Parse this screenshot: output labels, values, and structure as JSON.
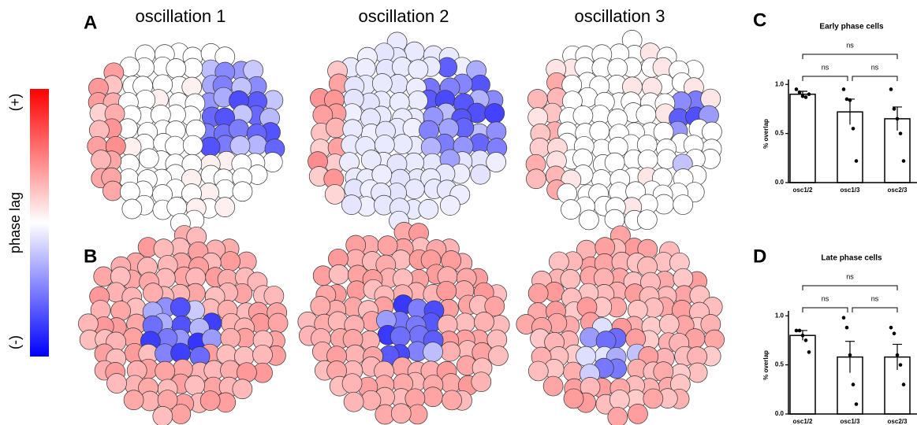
{
  "figure": {
    "panel_labels": [
      "A",
      "B",
      "C",
      "D"
    ],
    "column_titles": [
      "oscillation 1",
      "oscillation 2",
      "oscillation 3"
    ],
    "colorbar": {
      "label": "phase lag",
      "top": "(+)",
      "bottom": "(-)"
    }
  },
  "chart_data": [
    {
      "type": "bar",
      "title": "Early phase cells",
      "y_label": "% overlap",
      "categories": [
        "osc1/2",
        "osc1/3",
        "osc2/3"
      ],
      "values": [
        0.9,
        0.72,
        0.65
      ],
      "errors": [
        0.03,
        0.13,
        0.12
      ],
      "points": [
        [
          0.95,
          0.92,
          0.88,
          0.87,
          0.9
        ],
        [
          0.95,
          0.85,
          0.84,
          0.55,
          0.22
        ],
        [
          0.95,
          0.75,
          0.65,
          0.5,
          0.22
        ]
      ],
      "color": "#ffffff",
      "ylim": [
        0,
        1.05
      ],
      "yticks": [
        {
          "value": 0,
          "label": "0.0"
        },
        {
          "value": 0.5,
          "label": "0.5"
        },
        {
          "value": 1,
          "label": "1.0"
        }
      ],
      "annotations": [
        "ns",
        "ns",
        "ns"
      ]
    },
    {
      "type": "bar",
      "title": "Late phase cells",
      "y_label": "% overlap",
      "categories": [
        "osc1/2",
        "osc1/3",
        "osc2/3"
      ],
      "values": [
        0.8,
        0.58,
        0.58
      ],
      "errors": [
        0.05,
        0.16,
        0.13
      ],
      "points": [
        [
          0.85,
          0.85,
          0.8,
          0.75,
          0.63
        ],
        [
          0.98,
          0.88,
          0.6,
          0.3,
          0.1
        ],
        [
          0.88,
          0.82,
          0.6,
          0.5,
          0.3
        ]
      ],
      "color": "#ffffff",
      "ylim": [
        0,
        1.05
      ],
      "yticks": [
        {
          "value": 0,
          "label": "0.0"
        },
        {
          "value": 0.5,
          "label": "0.5"
        },
        {
          "value": 1,
          "label": "1.0"
        }
      ],
      "annotations": [
        "ns",
        "ns",
        "ns"
      ]
    }
  ]
}
